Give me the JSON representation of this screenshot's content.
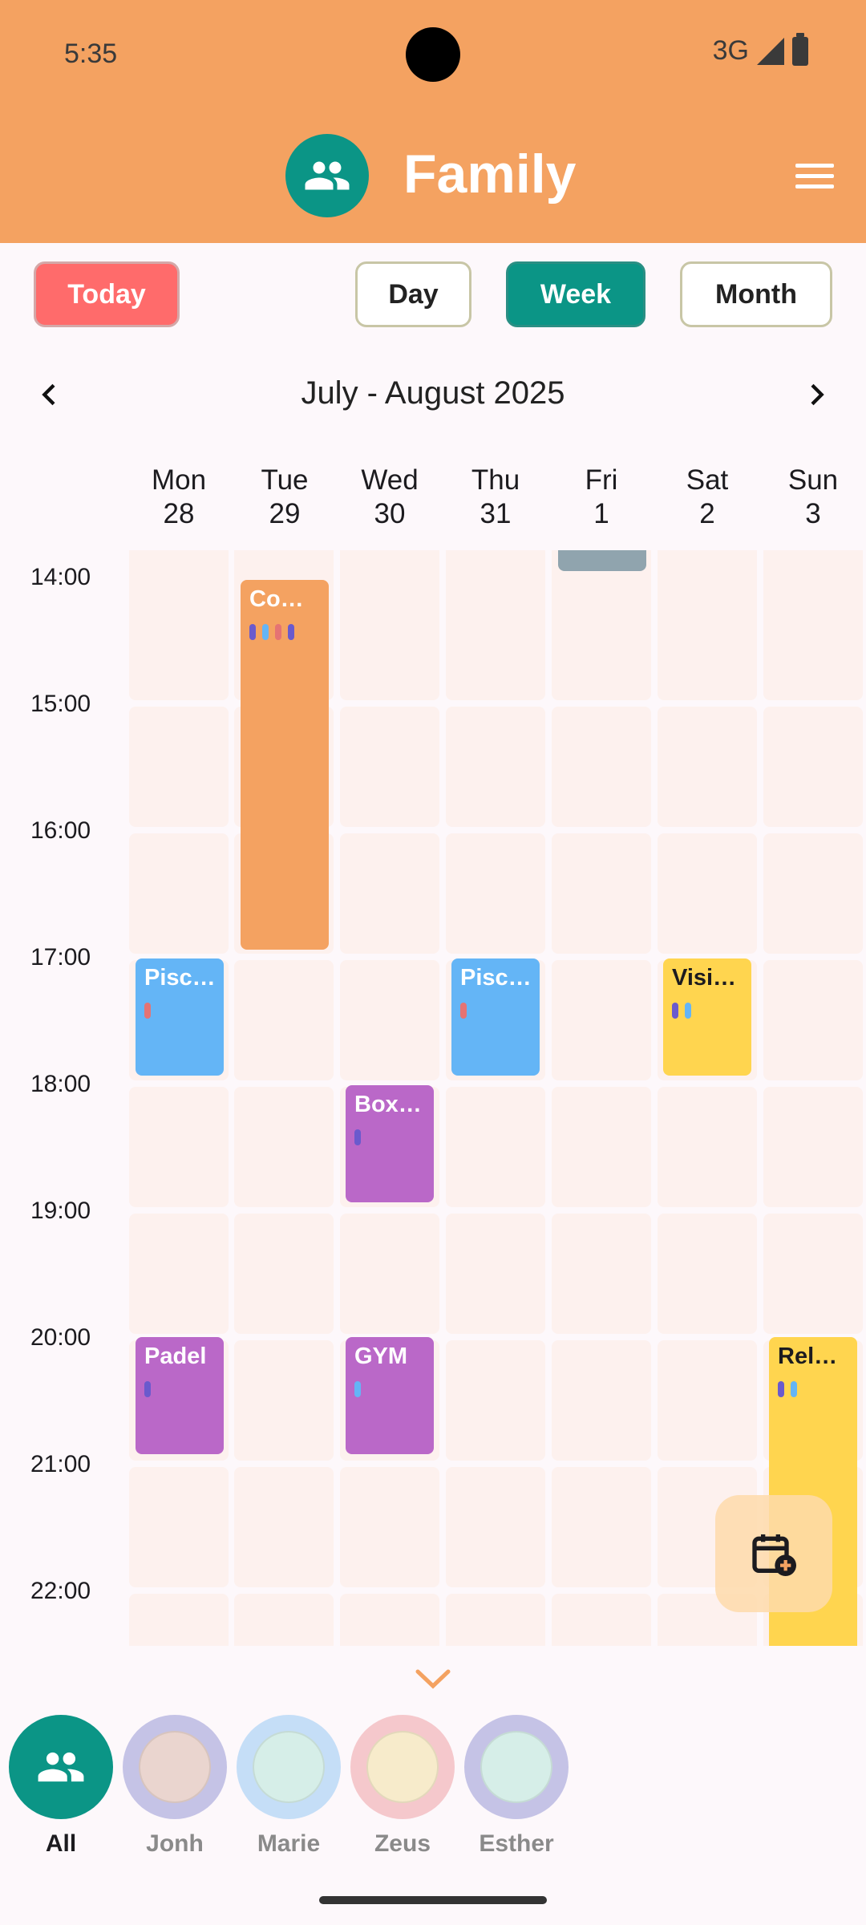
{
  "status_bar": {
    "time": "5:35",
    "network": "3G"
  },
  "header": {
    "title": "Family",
    "group_icon": "group-icon",
    "menu_icon": "hamburger-menu-icon"
  },
  "toolbar": {
    "today_label": "Today",
    "day_label": "Day",
    "week_label": "Week",
    "month_label": "Month",
    "selected_view": "Week"
  },
  "period": {
    "label": "July - August 2025"
  },
  "days": [
    {
      "name": "Mon",
      "num": "28"
    },
    {
      "name": "Tue",
      "num": "29"
    },
    {
      "name": "Wed",
      "num": "30"
    },
    {
      "name": "Thu",
      "num": "31"
    },
    {
      "name": "Fri",
      "num": "1"
    },
    {
      "name": "Sat",
      "num": "2"
    },
    {
      "name": "Sun",
      "num": "3"
    }
  ],
  "hours": [
    "14:00",
    "15:00",
    "16:00",
    "17:00",
    "18:00",
    "19:00",
    "20:00",
    "21:00",
    "22:00"
  ],
  "events": {
    "tue_co": {
      "title": "Co…",
      "color": "#F4A261",
      "dots": [
        "#6a5acd",
        "#64B5F6",
        "#e57373",
        "#6a5acd"
      ]
    },
    "mon_pisc": {
      "title": "Pisc…",
      "color": "#64B5F6",
      "dots": [
        "#e57373"
      ]
    },
    "thu_pisc": {
      "title": "Pisc…",
      "color": "#64B5F6",
      "dots": [
        "#e57373"
      ]
    },
    "sat_visi": {
      "title": "Visi…",
      "color": "#FFD54F",
      "dots": [
        "#6a5acd",
        "#64B5F6"
      ]
    },
    "wed_box": {
      "title": "Box…",
      "color": "#BA68C8",
      "dots": [
        "#6a5acd"
      ]
    },
    "mon_padel": {
      "title": "Padel",
      "color": "#BA68C8",
      "dots": [
        "#6a5acd"
      ]
    },
    "wed_gym": {
      "title": "GYM",
      "color": "#BA68C8",
      "dots": [
        "#64B5F6"
      ]
    },
    "sun_rel": {
      "title": "Rel…",
      "color": "#FFD54F",
      "dots": [
        "#6a5acd",
        "#64B5F6"
      ]
    },
    "fri_top": {
      "title": "",
      "color": "#90A4AE",
      "dots": []
    }
  },
  "fab": {
    "icon": "add-event-calendar-icon"
  },
  "members": [
    {
      "label": "All",
      "bg": "#0B9586"
    },
    {
      "label": "Jonh",
      "bg": "#C5C3E6"
    },
    {
      "label": "Marie",
      "bg": "#C5DEF7"
    },
    {
      "label": "Zeus",
      "bg": "#F5C8CC"
    },
    {
      "label": "Esther",
      "bg": "#C5C3E6"
    }
  ]
}
